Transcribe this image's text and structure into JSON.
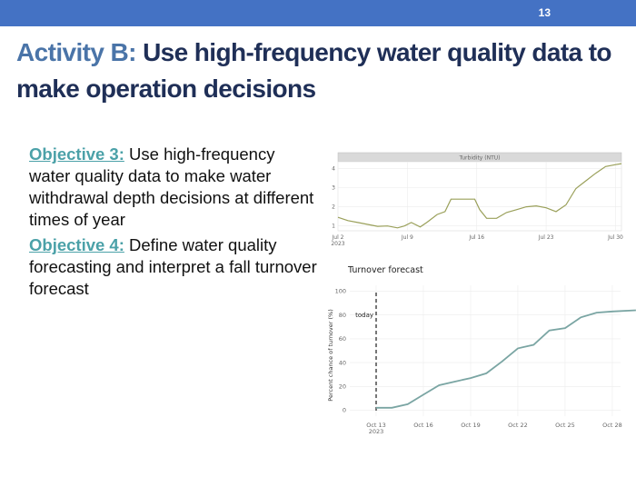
{
  "slide": {
    "number": "13",
    "title_accent": "Activity B:",
    "title_rest": "Use high-frequency water quality data to make operation decisions"
  },
  "objectives": [
    {
      "label": "Objective 3:",
      "text": "Use high-frequency water quality data to make water withdrawal depth decisions at different times of year"
    },
    {
      "label": "Objective 4:",
      "text": "Define water quality forecasting and interpret a fall turnover forecast"
    }
  ],
  "colors": {
    "topbar": "#4472c4",
    "title": "#1f2f57",
    "title_accent": "#4a74a8",
    "objective_label": "#4ba1a8",
    "turbidity_line": "#9aa05a",
    "turnover_line": "#7aa5a3"
  },
  "chart_data": [
    {
      "type": "line",
      "title": "",
      "strip_label": "Turbidity (NTU)",
      "xlabel": "",
      "ylabel": "",
      "x_tick_labels": [
        "Jul 2\n2023",
        "Jul 9",
        "Jul 16",
        "Jul 23",
        "Jul 30"
      ],
      "x_ticks_day": [
        2,
        9,
        16,
        23,
        30
      ],
      "y_ticks": [
        1,
        2,
        3,
        4
      ],
      "xlim": [
        2,
        30.6
      ],
      "ylim": [
        0.75,
        4.35
      ],
      "grid": true,
      "series": [
        {
          "x": [
            2,
            3,
            4,
            5,
            6,
            7,
            8,
            8.7,
            9.4,
            10.3,
            11,
            12,
            12.8,
            13.4,
            14,
            15,
            15.8,
            16.3,
            17,
            18,
            19,
            20,
            21,
            22,
            23,
            24,
            25,
            26,
            27,
            28,
            29,
            30,
            30.6
          ],
          "y": [
            1.45,
            1.28,
            1.18,
            1.08,
            0.98,
            1.0,
            0.9,
            1.0,
            1.18,
            0.95,
            1.2,
            1.6,
            1.75,
            2.4,
            2.4,
            2.4,
            2.4,
            1.85,
            1.4,
            1.4,
            1.7,
            1.85,
            2.0,
            2.05,
            1.95,
            1.75,
            2.1,
            2.95,
            3.35,
            3.75,
            4.1,
            4.2,
            4.25
          ]
        }
      ]
    },
    {
      "type": "line",
      "title": "Turnover forecast",
      "xlabel": "",
      "ylabel": "Percent chance of turnover (%)",
      "x_tick_labels": [
        "Oct 13\n2023",
        "Oct 16",
        "Oct 19",
        "Oct 22",
        "Oct 25",
        "Oct 28"
      ],
      "x_ticks_day": [
        13,
        16,
        19,
        22,
        25,
        28
      ],
      "y_ticks": [
        0,
        20,
        40,
        60,
        80,
        100
      ],
      "xlim": [
        13,
        29.5
      ],
      "ylim": [
        -5,
        105
      ],
      "grid": true,
      "annotation": {
        "label": "today",
        "x": 13
      },
      "series": [
        {
          "x": [
            13,
            14,
            15,
            16,
            17,
            18,
            19,
            20,
            21,
            22,
            23,
            24,
            25,
            26,
            27,
            28,
            29.5
          ],
          "y": [
            2,
            2,
            5,
            13,
            21,
            24,
            27,
            31,
            41,
            52,
            55,
            67,
            69,
            78,
            82,
            83,
            84
          ]
        }
      ]
    }
  ]
}
